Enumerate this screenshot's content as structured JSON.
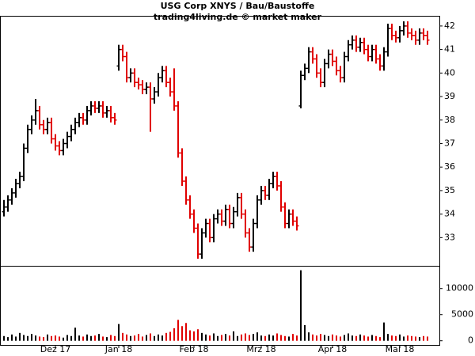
{
  "chart_data": {
    "type": "ohlc",
    "title": "USG Corp XNYS / Bau/Baustoffe",
    "subtitle": "trading4living.de © market maker",
    "up_color": "#000000",
    "down_color": "#e00000",
    "xlim": [
      -1,
      110
    ],
    "xticks": [
      {
        "value": 13,
        "label": "Dez 17"
      },
      {
        "value": 29,
        "label": "Jan 18"
      },
      {
        "value": 48,
        "label": "Feb 18"
      },
      {
        "value": 65,
        "label": "Mrz 18"
      },
      {
        "value": 83,
        "label": "Apr 18"
      },
      {
        "value": 100,
        "label": "Mai 18"
      }
    ],
    "ylim": [
      31.8,
      42.4
    ],
    "yticks": [
      33,
      34,
      35,
      36,
      37,
      38,
      39,
      40,
      41,
      42
    ],
    "open": [
      34.1,
      34.3,
      34.6,
      34.9,
      35.3,
      35.6,
      36.8,
      37.6,
      38.0,
      38.4,
      37.8,
      37.6,
      37.9,
      37.2,
      36.9,
      36.7,
      37.0,
      37.3,
      37.6,
      37.9,
      38.1,
      38.0,
      38.4,
      38.6,
      38.5,
      38.6,
      38.3,
      38.4,
      38.1,
      40.3,
      41.0,
      40.7,
      39.8,
      40.0,
      39.6,
      39.5,
      39.3,
      39.4,
      38.9,
      39.2,
      39.8,
      40.1,
      39.6,
      39.2,
      38.6,
      36.6,
      35.4,
      34.6,
      34.0,
      33.4,
      32.3,
      33.2,
      33.6,
      33.0,
      33.8,
      34.0,
      33.7,
      34.2,
      33.6,
      34.1,
      34.7,
      34.0,
      33.2,
      32.6,
      33.6,
      34.6,
      35.0,
      34.8,
      35.3,
      35.6,
      35.2,
      34.3,
      33.6,
      34.0,
      33.7,
      38.6,
      39.9,
      40.2,
      40.9,
      40.6,
      40.0,
      39.6,
      40.4,
      40.8,
      40.5,
      40.1,
      39.8,
      40.7,
      41.2,
      41.4,
      41.1,
      41.3,
      41.0,
      40.7,
      41.0,
      40.6,
      40.3,
      40.9,
      41.9,
      41.6,
      41.5,
      41.8,
      42.0,
      41.7,
      41.6,
      41.4,
      41.7,
      41.6
    ],
    "high": [
      34.6,
      34.8,
      35.1,
      35.5,
      35.8,
      37.0,
      37.8,
      38.2,
      38.9,
      38.6,
      38.0,
      38.1,
      38.1,
      37.4,
      37.1,
      37.2,
      37.5,
      37.8,
      38.1,
      38.3,
      38.3,
      38.6,
      38.8,
      38.8,
      38.8,
      38.8,
      38.6,
      38.6,
      38.3,
      41.2,
      41.2,
      40.9,
      40.2,
      40.2,
      39.8,
      39.7,
      39.6,
      39.6,
      39.4,
      40.0,
      40.3,
      40.3,
      39.8,
      40.2,
      38.8,
      36.8,
      35.6,
      34.8,
      34.2,
      33.6,
      33.4,
      33.8,
      33.8,
      34.0,
      34.2,
      34.2,
      34.4,
      34.4,
      34.3,
      34.9,
      34.9,
      34.2,
      33.4,
      33.8,
      34.8,
      35.2,
      35.2,
      35.5,
      35.8,
      35.8,
      35.4,
      34.5,
      34.2,
      34.2,
      33.9,
      40.1,
      40.4,
      41.1,
      41.1,
      40.8,
      40.2,
      40.6,
      41.0,
      41.0,
      40.7,
      40.3,
      40.9,
      41.4,
      41.6,
      41.6,
      41.5,
      41.5,
      41.2,
      41.2,
      41.2,
      40.8,
      41.1,
      42.1,
      42.1,
      41.8,
      42.0,
      42.2,
      42.2,
      41.9,
      41.8,
      41.9,
      41.9,
      41.8
    ],
    "low": [
      33.9,
      34.1,
      34.4,
      34.7,
      35.1,
      35.4,
      36.6,
      37.4,
      37.8,
      37.6,
      37.4,
      37.4,
      37.0,
      36.7,
      36.5,
      36.5,
      36.8,
      37.1,
      37.4,
      37.7,
      37.8,
      37.8,
      38.2,
      38.3,
      38.3,
      38.1,
      38.1,
      37.9,
      37.8,
      40.1,
      40.5,
      39.6,
      39.6,
      39.4,
      39.3,
      39.1,
      39.1,
      37.5,
      38.7,
      39.0,
      39.6,
      39.4,
      39.0,
      38.4,
      36.4,
      35.2,
      34.4,
      33.8,
      33.2,
      32.1,
      32.1,
      33.0,
      32.8,
      32.8,
      33.6,
      33.5,
      33.5,
      33.4,
      33.4,
      33.9,
      33.8,
      33.0,
      32.4,
      32.4,
      33.4,
      34.4,
      34.6,
      34.6,
      35.1,
      35.0,
      34.1,
      33.4,
      33.4,
      33.5,
      33.3,
      38.5,
      39.7,
      40.0,
      40.4,
      39.8,
      39.4,
      39.4,
      40.2,
      40.3,
      39.9,
      39.6,
      39.6,
      40.5,
      41.0,
      40.9,
      40.9,
      40.8,
      40.5,
      40.5,
      40.4,
      40.1,
      40.1,
      40.7,
      41.4,
      41.3,
      41.3,
      41.6,
      41.5,
      41.4,
      41.2,
      41.2,
      41.4,
      41.2
    ],
    "close": [
      34.3,
      34.6,
      34.9,
      35.3,
      35.6,
      36.8,
      37.6,
      38.0,
      38.4,
      37.8,
      37.6,
      37.9,
      37.2,
      36.9,
      36.7,
      37.0,
      37.3,
      37.6,
      37.9,
      38.1,
      38.0,
      38.4,
      38.6,
      38.5,
      38.6,
      38.3,
      38.4,
      38.1,
      38.0,
      41.0,
      40.7,
      39.8,
      40.0,
      39.6,
      39.5,
      39.3,
      39.4,
      38.9,
      39.2,
      39.8,
      40.1,
      39.6,
      39.2,
      38.6,
      36.6,
      35.4,
      34.6,
      34.0,
      33.4,
      32.3,
      33.2,
      33.6,
      33.0,
      33.8,
      34.0,
      33.7,
      34.2,
      33.6,
      34.1,
      34.7,
      34.0,
      33.2,
      32.6,
      33.6,
      34.6,
      35.0,
      34.8,
      35.3,
      35.6,
      35.2,
      34.3,
      33.6,
      34.0,
      33.7,
      33.5,
      39.9,
      40.2,
      40.9,
      40.6,
      40.0,
      39.6,
      40.4,
      40.8,
      40.5,
      40.1,
      39.8,
      40.7,
      41.2,
      41.4,
      41.1,
      41.3,
      41.0,
      40.7,
      41.0,
      40.6,
      40.3,
      40.9,
      41.9,
      41.6,
      41.5,
      41.8,
      42.0,
      41.7,
      41.6,
      41.4,
      41.7,
      41.6,
      41.4
    ],
    "volume": [
      900,
      700,
      1200,
      800,
      1500,
      1100,
      900,
      1300,
      1000,
      800,
      700,
      1200,
      900,
      1000,
      800,
      600,
      1100,
      900,
      2500,
      1000,
      800,
      1200,
      900,
      1000,
      1300,
      800,
      700,
      1100,
      900,
      3200,
      1500,
      1200,
      900,
      1000,
      1300,
      800,
      1100,
      1400,
      900,
      1200,
      1000,
      1500,
      1700,
      2400,
      4000,
      2800,
      3400,
      2000,
      1800,
      2200,
      1500,
      1200,
      1000,
      1400,
      900,
      1100,
      1300,
      1000,
      1800,
      900,
      1200,
      1400,
      1100,
      1300,
      1600,
      1000,
      900,
      1200,
      1000,
      1400,
      1100,
      900,
      800,
      1300,
      1000,
      13500,
      3000,
      1600,
      1200,
      1000,
      1300,
      1100,
      900,
      1200,
      1000,
      800,
      1100,
      1400,
      1000,
      900,
      1200,
      1000,
      800,
      1100,
      900,
      700,
      3500,
      1300,
      1000,
      900,
      1200,
      800,
      1000,
      900,
      800,
      700,
      900,
      800
    ],
    "volume_ylim": [
      -800,
      14200
    ],
    "volume_yticks": [
      0,
      5000,
      10000
    ]
  }
}
